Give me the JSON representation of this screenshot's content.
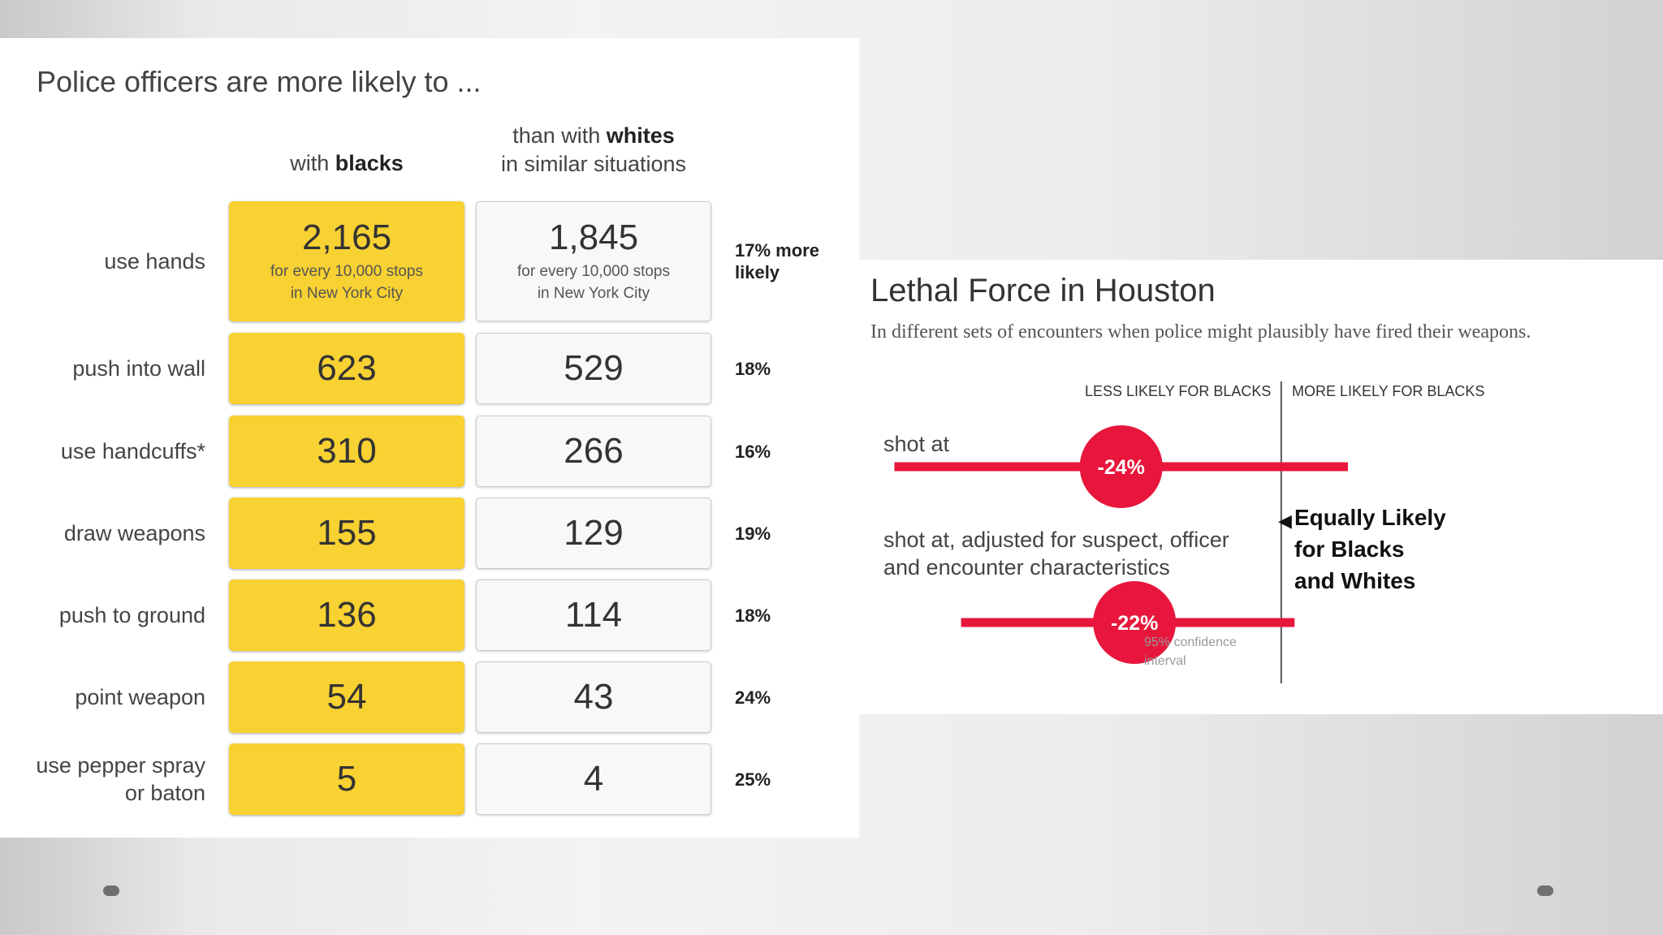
{
  "table": {
    "title": "Police officers are more likely to ...",
    "col_blacks": {
      "prefix": "with ",
      "bold": "blacks"
    },
    "col_whites": {
      "line1_prefix": "than with ",
      "line1_bold": "whites",
      "line2": "in similar situations"
    },
    "unit_line1": "for every 10,000 stops",
    "unit_line2": "in New York City",
    "rows": [
      {
        "label": "use hands",
        "label2": "",
        "blacks": "2,165",
        "whites": "1,845",
        "diff": "17% more",
        "diff2": "likely"
      },
      {
        "label": "push into wall",
        "label2": "",
        "blacks": "623",
        "whites": "529",
        "diff": "18%",
        "diff2": ""
      },
      {
        "label": "use handcuffs*",
        "label2": "",
        "blacks": "310",
        "whites": "266",
        "diff": "16%",
        "diff2": ""
      },
      {
        "label": "draw weapons",
        "label2": "",
        "blacks": "155",
        "whites": "129",
        "diff": "19%",
        "diff2": ""
      },
      {
        "label": "push to ground",
        "label2": "",
        "blacks": "136",
        "whites": "114",
        "diff": "18%",
        "diff2": ""
      },
      {
        "label": "point weapon",
        "label2": "",
        "blacks": "54",
        "whites": "43",
        "diff": "24%",
        "diff2": ""
      },
      {
        "label": "use pepper spray",
        "label2": "or baton",
        "blacks": "5",
        "whites": "4",
        "diff": "25%",
        "diff2": ""
      }
    ]
  },
  "chart_data": {
    "type": "scatter",
    "title": "Lethal Force in Houston",
    "subtitle": "In different sets of encounters when police might plausibly have fired their weapons.",
    "axis_left_label": "LESS LIKELY FOR BLACKS",
    "axis_right_label": "MORE LIKELY FOR BLACKS",
    "zero_line_value": 0,
    "xlim": [
      -60,
      10
    ],
    "series": [
      {
        "name": "shot at",
        "name2": "",
        "estimate": -24,
        "estimate_label": "-24%",
        "ci": [
          -58,
          10
        ]
      },
      {
        "name": "shot at, adjusted for suspect, officer",
        "name2": "and encounter characteristics",
        "estimate": -22,
        "estimate_label": "-22%",
        "ci": [
          -48,
          2
        ]
      }
    ],
    "note": [
      "Equally Likely",
      "for Blacks",
      "and Whites"
    ],
    "ci_note": "95% confidence interval",
    "colors": {
      "marker": "#e8163c",
      "axis": "#555555"
    }
  },
  "colors": {
    "black_cell": "#f8d132",
    "white_cell": "#f8f8f8"
  }
}
